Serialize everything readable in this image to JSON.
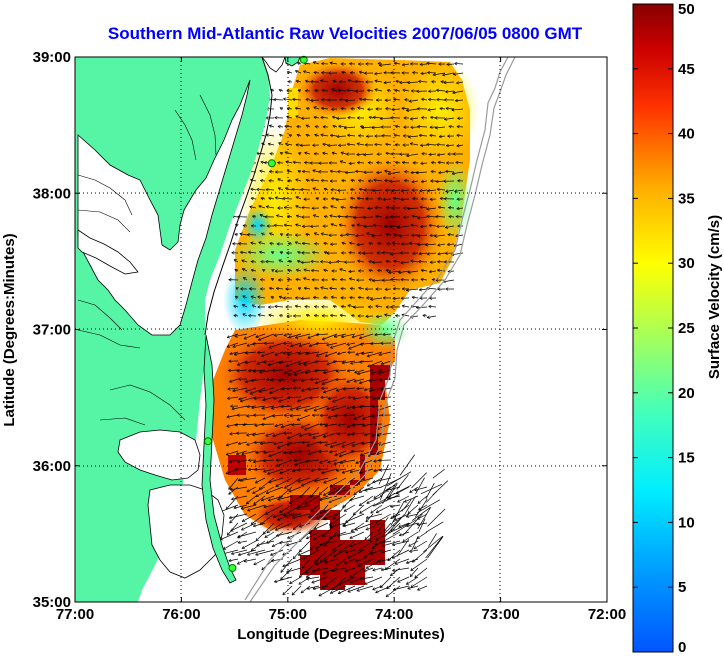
{
  "title": "Southern Mid-Atlantic Raw Velocities 2007/06/05 0800 GMT",
  "xlabel": "Longitude (Degrees:Minutes)",
  "ylabel": "Latitude (Degrees:Minutes)",
  "colorbar_label": "Surface Velocity (cm/s)",
  "colors": {
    "land": "#55f5a5",
    "grid": "#000000",
    "title": "#0000ff"
  },
  "map_extent": {
    "lon_min": -77,
    "lon_max": -72,
    "lat_min": 35,
    "lat_max": 39
  },
  "x_ticks": [
    {
      "value": -77,
      "label": "77:00"
    },
    {
      "value": -76,
      "label": "76:00"
    },
    {
      "value": -75,
      "label": "75:00"
    },
    {
      "value": -74,
      "label": "74:00"
    },
    {
      "value": -73,
      "label": "73:00"
    },
    {
      "value": -72,
      "label": "72:00"
    }
  ],
  "y_ticks": [
    {
      "value": 39,
      "label": "39:00"
    },
    {
      "value": 38,
      "label": "38:00"
    },
    {
      "value": 37,
      "label": "37:00"
    },
    {
      "value": 36,
      "label": "36:00"
    },
    {
      "value": 35,
      "label": "35:00"
    }
  ],
  "colorbar": {
    "min": 0,
    "max": 50,
    "ticks": [
      {
        "value": 0,
        "label": "0"
      },
      {
        "value": 5,
        "label": "5"
      },
      {
        "value": 10,
        "label": "10"
      },
      {
        "value": 15,
        "label": "15"
      },
      {
        "value": 20,
        "label": "20"
      },
      {
        "value": 25,
        "label": "25"
      },
      {
        "value": 30,
        "label": "30"
      },
      {
        "value": 35,
        "label": "35"
      },
      {
        "value": 40,
        "label": "40"
      },
      {
        "value": 45,
        "label": "45"
      },
      {
        "value": 50,
        "label": "50"
      }
    ]
  },
  "stations": [
    {
      "lon": -74.85,
      "lat": 38.98
    },
    {
      "lon": -75.15,
      "lat": 38.22
    },
    {
      "lon": -75.75,
      "lat": 36.18
    },
    {
      "lon": -75.52,
      "lat": 35.25
    }
  ]
}
